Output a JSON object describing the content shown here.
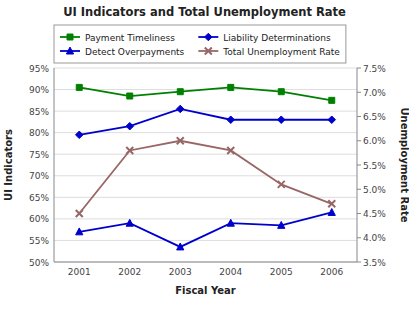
{
  "chart_data": {
    "type": "line",
    "title": "UI Indicators and Total Unemployment Rate",
    "xlabel": "Fiscal Year",
    "ylabel": "UI Indicators",
    "y2label": "Unemployment Rate",
    "categories": [
      "2001",
      "2002",
      "2003",
      "2004",
      "2005",
      "2006"
    ],
    "series": [
      {
        "name": "Payment Timeliness",
        "color": "#008000",
        "marker": "square",
        "values": [
          90.5,
          88.5,
          89.5,
          90.5,
          89.5,
          87.5
        ]
      },
      {
        "name": "Liability Determinations",
        "color": "#0000CD",
        "marker": "diamond",
        "values": [
          79.5,
          81.5,
          85.5,
          83.0,
          83.0,
          83.0
        ]
      },
      {
        "name": "Detect Overpayments",
        "color": "#0000CD",
        "marker": "triangle",
        "values": [
          57.0,
          59.0,
          53.5,
          59.0,
          58.5,
          61.5
        ]
      },
      {
        "name": "Total Unemployment Rate",
        "color": "#996666",
        "marker": "x",
        "axis": "y2",
        "values": [
          4.5,
          5.8,
          6.0,
          5.8,
          5.1,
          4.7
        ]
      }
    ],
    "ylim": [
      50,
      95
    ],
    "yticks": [
      {
        "value": 50,
        "label": "50%"
      },
      {
        "value": 55,
        "label": "55%"
      },
      {
        "value": 60,
        "label": "60%"
      },
      {
        "value": 65,
        "label": "65%"
      },
      {
        "value": 70,
        "label": "70%"
      },
      {
        "value": 75,
        "label": "75%"
      },
      {
        "value": 80,
        "label": "80%"
      },
      {
        "value": 85,
        "label": "85%"
      },
      {
        "value": 90,
        "label": "90%"
      },
      {
        "value": 95,
        "label": "95%"
      }
    ],
    "y2lim": [
      3.5,
      7.5
    ],
    "y2ticks": [
      {
        "value": 3.5,
        "label": "3.5%"
      },
      {
        "value": 4.0,
        "label": "4.0%"
      },
      {
        "value": 4.5,
        "label": "4.5%"
      },
      {
        "value": 5.0,
        "label": "5.0%"
      },
      {
        "value": 5.5,
        "label": "5.5%"
      },
      {
        "value": 6.0,
        "label": "6.0%"
      },
      {
        "value": 6.5,
        "label": "6.5%"
      },
      {
        "value": 7.0,
        "label": "7.0%"
      },
      {
        "value": 7.5,
        "label": "7.5%"
      }
    ],
    "grid": true,
    "legend": "upper left"
  }
}
